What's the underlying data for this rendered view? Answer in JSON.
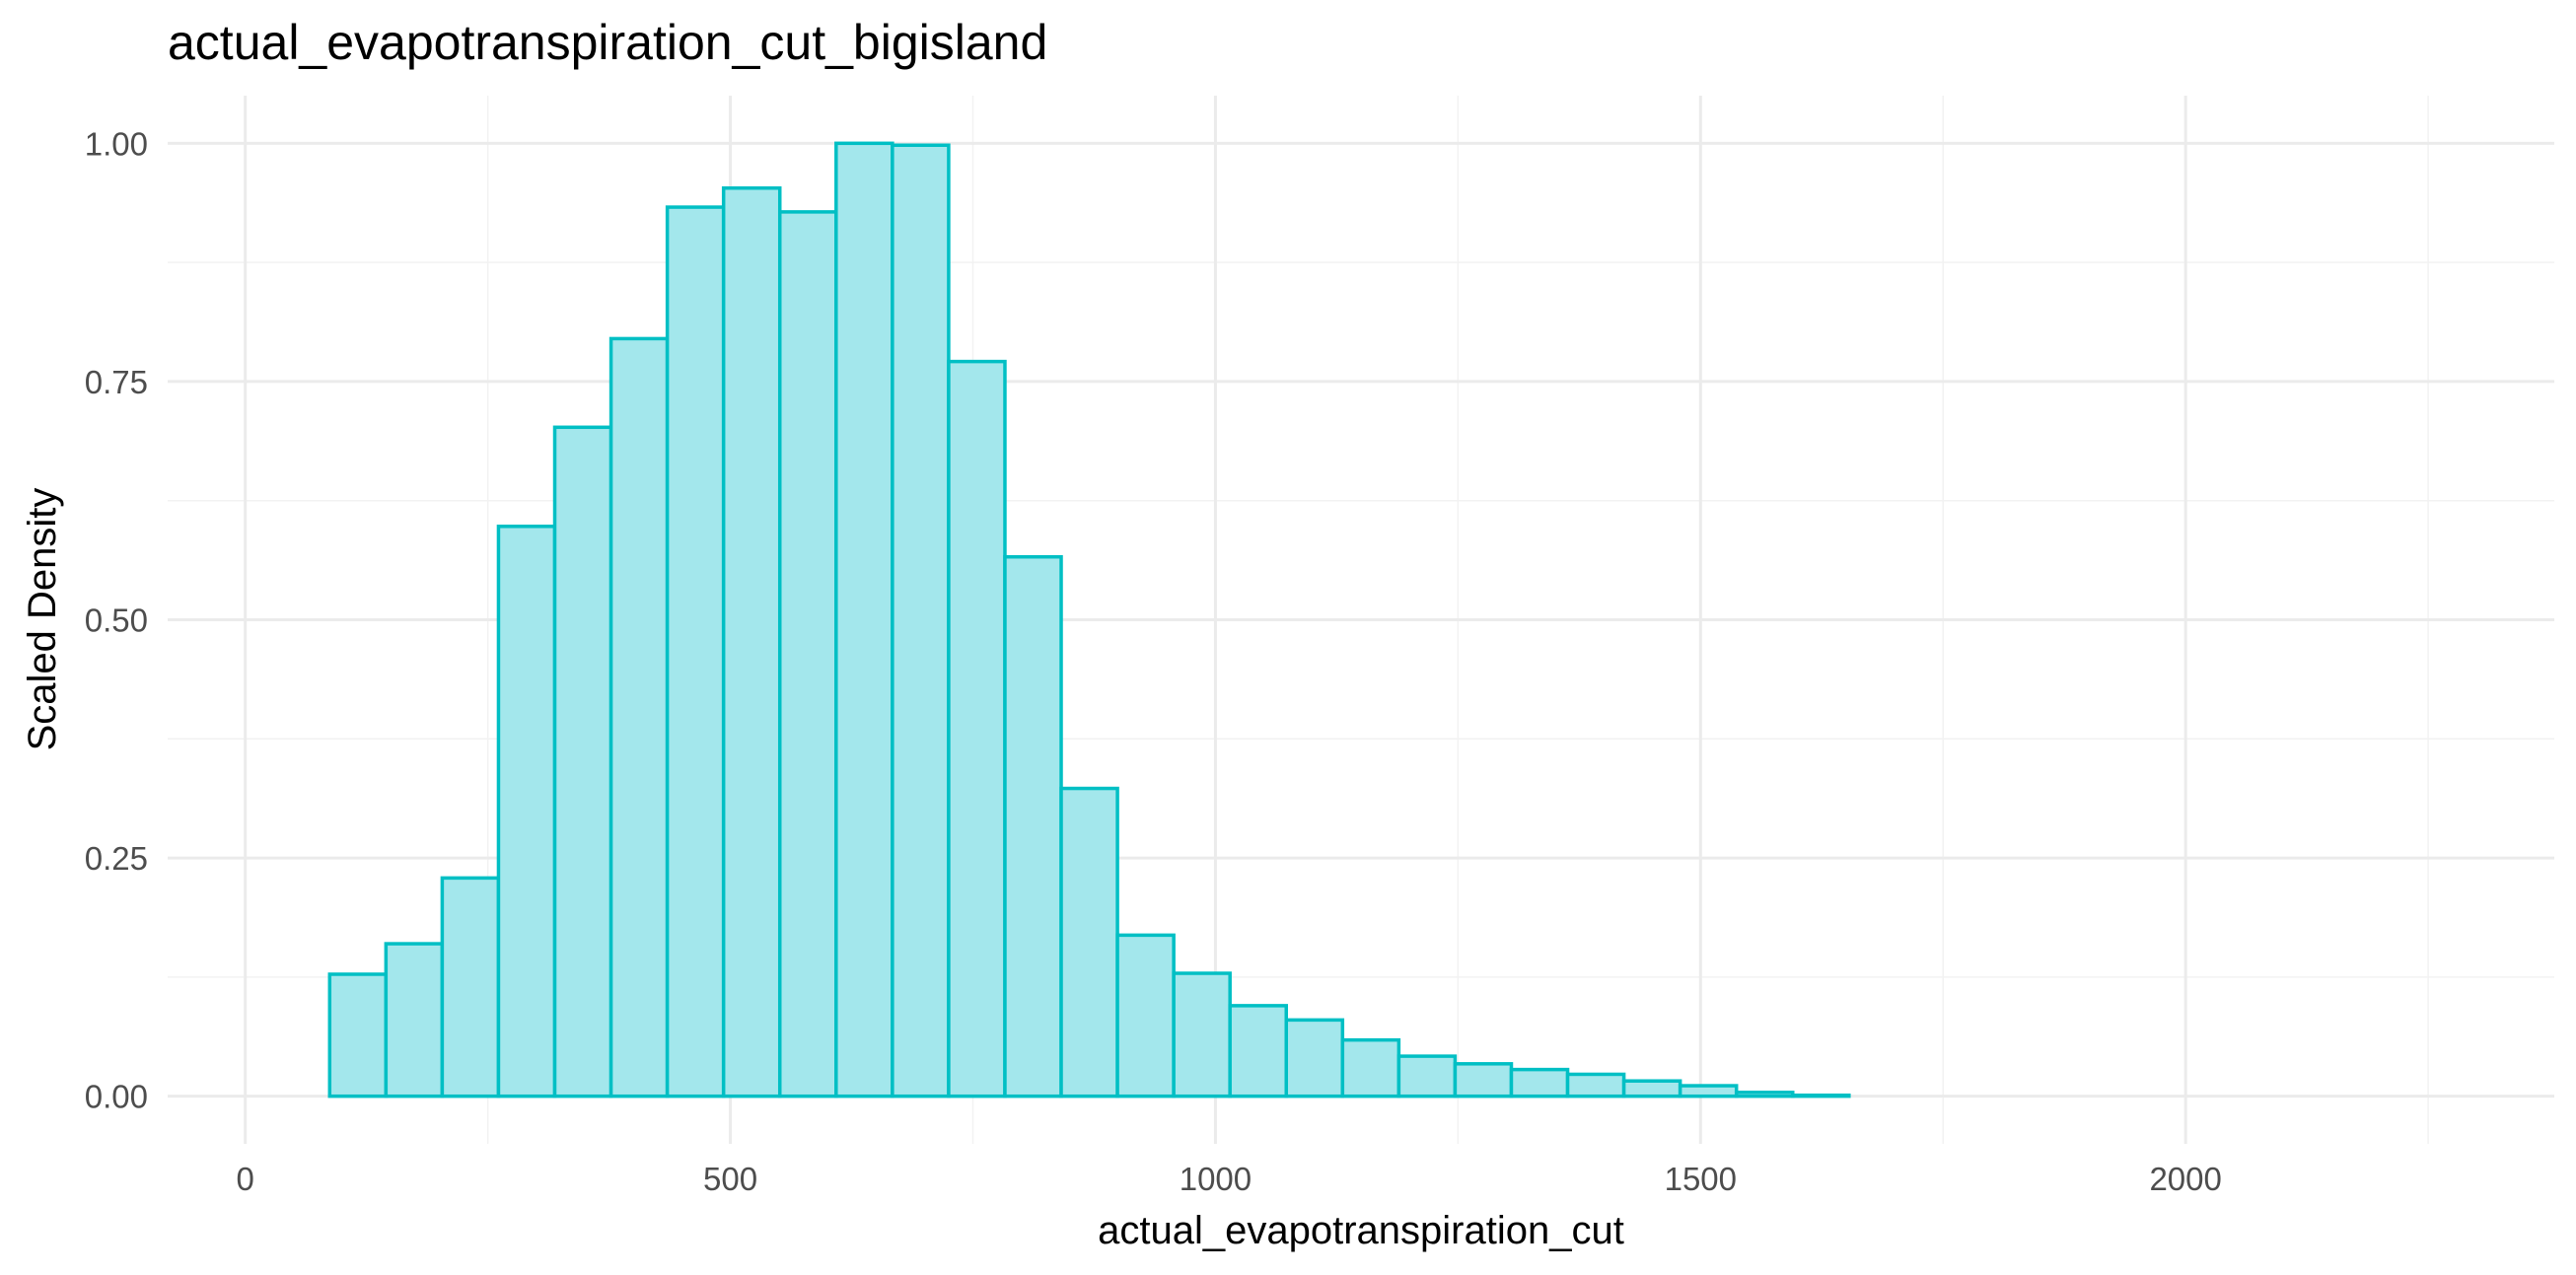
{
  "chart_data": {
    "type": "bar",
    "title": "actual_evapotranspiration_cut_bigisland",
    "xlabel": "actual_evapotranspiration_cut",
    "ylabel": "Scaled Density",
    "xlim": [
      -80,
      2380
    ],
    "ylim": [
      -0.05,
      1.05
    ],
    "x_ticks": [
      0,
      500,
      1000,
      1500,
      2000
    ],
    "x_tick_labels": [
      "0",
      "500",
      "1000",
      "1500",
      "2000"
    ],
    "y_ticks": [
      0,
      0.25,
      0.5,
      0.75,
      1.0
    ],
    "y_tick_labels": [
      "0.00",
      "0.25",
      "0.50",
      "0.75",
      "1.00"
    ],
    "grid": true,
    "fill_color": "#a3e7ec",
    "stroke_color": "#00bfc4",
    "bin_width": 58,
    "bins": [
      {
        "start": 87,
        "end": 145,
        "value": 0.128
      },
      {
        "start": 145,
        "end": 203,
        "value": 0.16
      },
      {
        "start": 203,
        "end": 261,
        "value": 0.229
      },
      {
        "start": 261,
        "end": 319,
        "value": 0.598
      },
      {
        "start": 319,
        "end": 377,
        "value": 0.702
      },
      {
        "start": 377,
        "end": 435,
        "value": 0.795
      },
      {
        "start": 435,
        "end": 493,
        "value": 0.933
      },
      {
        "start": 493,
        "end": 551,
        "value": 0.953
      },
      {
        "start": 551,
        "end": 609,
        "value": 0.928
      },
      {
        "start": 609,
        "end": 667,
        "value": 1.0
      },
      {
        "start": 667,
        "end": 725,
        "value": 0.998
      },
      {
        "start": 725,
        "end": 783,
        "value": 0.771
      },
      {
        "start": 783,
        "end": 841,
        "value": 0.566
      },
      {
        "start": 841,
        "end": 899,
        "value": 0.323
      },
      {
        "start": 899,
        "end": 957,
        "value": 0.169
      },
      {
        "start": 957,
        "end": 1015,
        "value": 0.129
      },
      {
        "start": 1015,
        "end": 1073,
        "value": 0.095
      },
      {
        "start": 1073,
        "end": 1131,
        "value": 0.08
      },
      {
        "start": 1131,
        "end": 1189,
        "value": 0.059
      },
      {
        "start": 1189,
        "end": 1247,
        "value": 0.042
      },
      {
        "start": 1247,
        "end": 1305,
        "value": 0.034
      },
      {
        "start": 1305,
        "end": 1363,
        "value": 0.028
      },
      {
        "start": 1363,
        "end": 1421,
        "value": 0.023
      },
      {
        "start": 1421,
        "end": 1479,
        "value": 0.016
      },
      {
        "start": 1479,
        "end": 1537,
        "value": 0.011
      },
      {
        "start": 1537,
        "end": 1595,
        "value": 0.004
      },
      {
        "start": 1595,
        "end": 1653,
        "value": 0.001
      },
      {
        "start": 1653,
        "end": 1711,
        "value": 0.0
      },
      {
        "start": 1711,
        "end": 1769,
        "value": 0.0
      },
      {
        "start": 1769,
        "end": 1827,
        "value": 0.0
      },
      {
        "start": 1827,
        "end": 1885,
        "value": 0.0
      },
      {
        "start": 1885,
        "end": 1943,
        "value": 0.0
      },
      {
        "start": 1943,
        "end": 2001,
        "value": 0.0
      },
      {
        "start": 2001,
        "end": 2059,
        "value": 0.0
      },
      {
        "start": 2059,
        "end": 2117,
        "value": 0.0
      },
      {
        "start": 2117,
        "end": 2175,
        "value": 0.0
      },
      {
        "start": 2175,
        "end": 2233,
        "value": 0.0
      },
      {
        "start": 2233,
        "end": 2291,
        "value": 0.0
      }
    ]
  }
}
